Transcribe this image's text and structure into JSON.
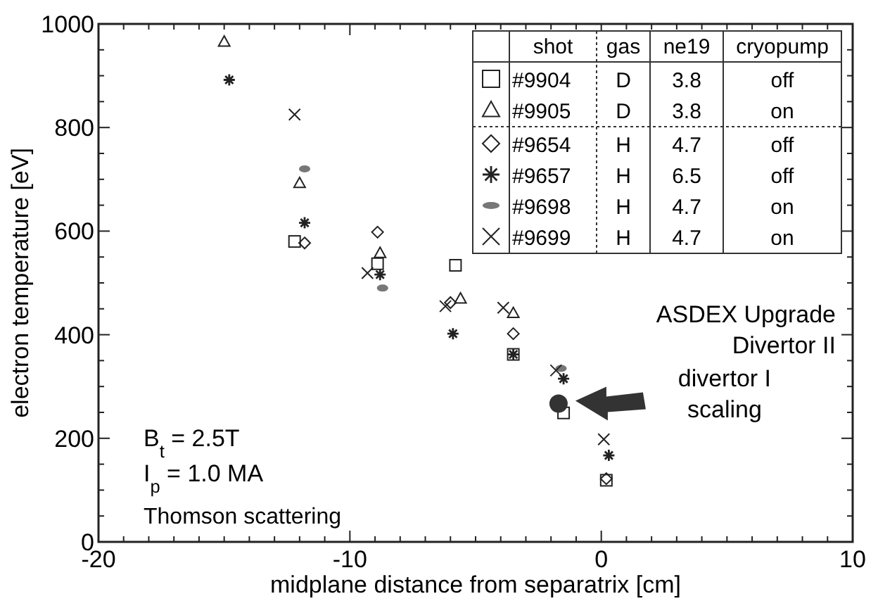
{
  "chart_data": {
    "type": "scatter",
    "xlabel": "midplane distance from separatrix [cm]",
    "ylabel": "electron temperature [eV]",
    "xlim": [
      -20,
      10
    ],
    "ylim": [
      0,
      1000
    ],
    "xticks": [
      -20,
      {
        "value": -19,
        "label": null
      },
      {
        "value": -18,
        "label": null
      },
      {
        "value": -17,
        "label": null
      },
      {
        "value": -16,
        "label": null
      },
      {
        "value": -15,
        "label": null
      },
      {
        "value": -14,
        "label": null
      },
      {
        "value": -13,
        "label": null
      },
      {
        "value": -12,
        "label": null
      },
      {
        "value": -11,
        "label": null
      },
      -10,
      {
        "value": -9,
        "label": null
      },
      {
        "value": -8,
        "label": null
      },
      {
        "value": -7,
        "label": null
      },
      {
        "value": -6,
        "label": null
      },
      {
        "value": -5,
        "label": null
      },
      {
        "value": -4,
        "label": null
      },
      {
        "value": -3,
        "label": null
      },
      {
        "value": -2,
        "label": null
      },
      {
        "value": -1,
        "label": null
      },
      0,
      {
        "value": 1,
        "label": null
      },
      {
        "value": 2,
        "label": null
      },
      {
        "value": 3,
        "label": null
      },
      {
        "value": 4,
        "label": null
      },
      {
        "value": 5,
        "label": null
      },
      {
        "value": 6,
        "label": null
      },
      {
        "value": 7,
        "label": null
      },
      {
        "value": 8,
        "label": null
      },
      {
        "value": 9,
        "label": null
      },
      10
    ],
    "yticks": [
      0,
      {
        "value": 50,
        "label": null
      },
      {
        "value": 100,
        "label": null
      },
      {
        "value": 150,
        "label": null
      },
      200,
      {
        "value": 250,
        "label": null
      },
      {
        "value": 300,
        "label": null
      },
      {
        "value": 350,
        "label": null
      },
      400,
      {
        "value": 450,
        "label": null
      },
      {
        "value": 500,
        "label": null
      },
      {
        "value": 550,
        "label": null
      },
      600,
      {
        "value": 650,
        "label": null
      },
      {
        "value": 700,
        "label": null
      },
      {
        "value": 750,
        "label": null
      },
      800,
      {
        "value": 850,
        "label": null
      },
      {
        "value": 900,
        "label": null
      },
      {
        "value": 950,
        "label": null
      },
      1000
    ],
    "grid": false,
    "legend": "top right",
    "legend_title": "shot",
    "series": [
      {
        "name": "#9904",
        "color": "#222222",
        "marker": "square",
        "x": [
          -12.2,
          -8.9,
          -5.8,
          -3.5,
          -1.5,
          0.2
        ],
        "values": [
          580,
          537,
          534,
          362,
          249,
          119
        ]
      },
      {
        "name": "#9905",
        "color": "#222222",
        "marker": "triangle",
        "x": [
          -15.0,
          -12.0,
          -8.8,
          -5.6,
          -3.5
        ],
        "values": [
          966,
          693,
          558,
          470,
          442
        ]
      },
      {
        "name": "#9654",
        "color": "#222222",
        "marker": "diamond",
        "x": [
          -11.8,
          -8.9,
          -6.0,
          -3.5,
          0.2
        ],
        "values": [
          577,
          598,
          462,
          402,
          122
        ]
      },
      {
        "name": "#9657",
        "color": "#222222",
        "x": [
          -14.8,
          -11.8,
          -8.8,
          -5.9,
          -3.5,
          -1.5,
          0.3
        ],
        "values": [
          892,
          616,
          516,
          402,
          362,
          315,
          167
        ]
      },
      {
        "name": "#9698",
        "color": "#777777",
        "x": [
          -11.8,
          -8.7,
          -1.6
        ],
        "values": [
          720,
          490,
          335
        ]
      },
      {
        "name": "#9699",
        "color": "#222222",
        "marker": "cross",
        "x": [
          -12.2,
          -9.3,
          -6.2,
          -3.9,
          -1.8,
          0.1
        ],
        "values": [
          825,
          519,
          455,
          452,
          331,
          198
        ]
      },
      {
        "color": "#333333",
        "marker": "circle",
        "x": [
          -1.7
        ],
        "values": [
          267
        ]
      }
    ],
    "annotations": [
      "gas",
      "ne19",
      "cryopump",
      "D",
      "3.8",
      "off",
      "D",
      "3.8",
      "on",
      "H",
      "4.7",
      "off",
      "H",
      "6.5",
      "off",
      "H",
      "4.7",
      "on",
      "H",
      "4.7",
      "on",
      "ASDEX Upgrade",
      "Divertor II",
      "B$_{t}$ = 2.5T",
      "I$_{p}$ = 1.0 MA",
      "Thomson scattering",
      "divertor I scaling"
    ]
  }
}
